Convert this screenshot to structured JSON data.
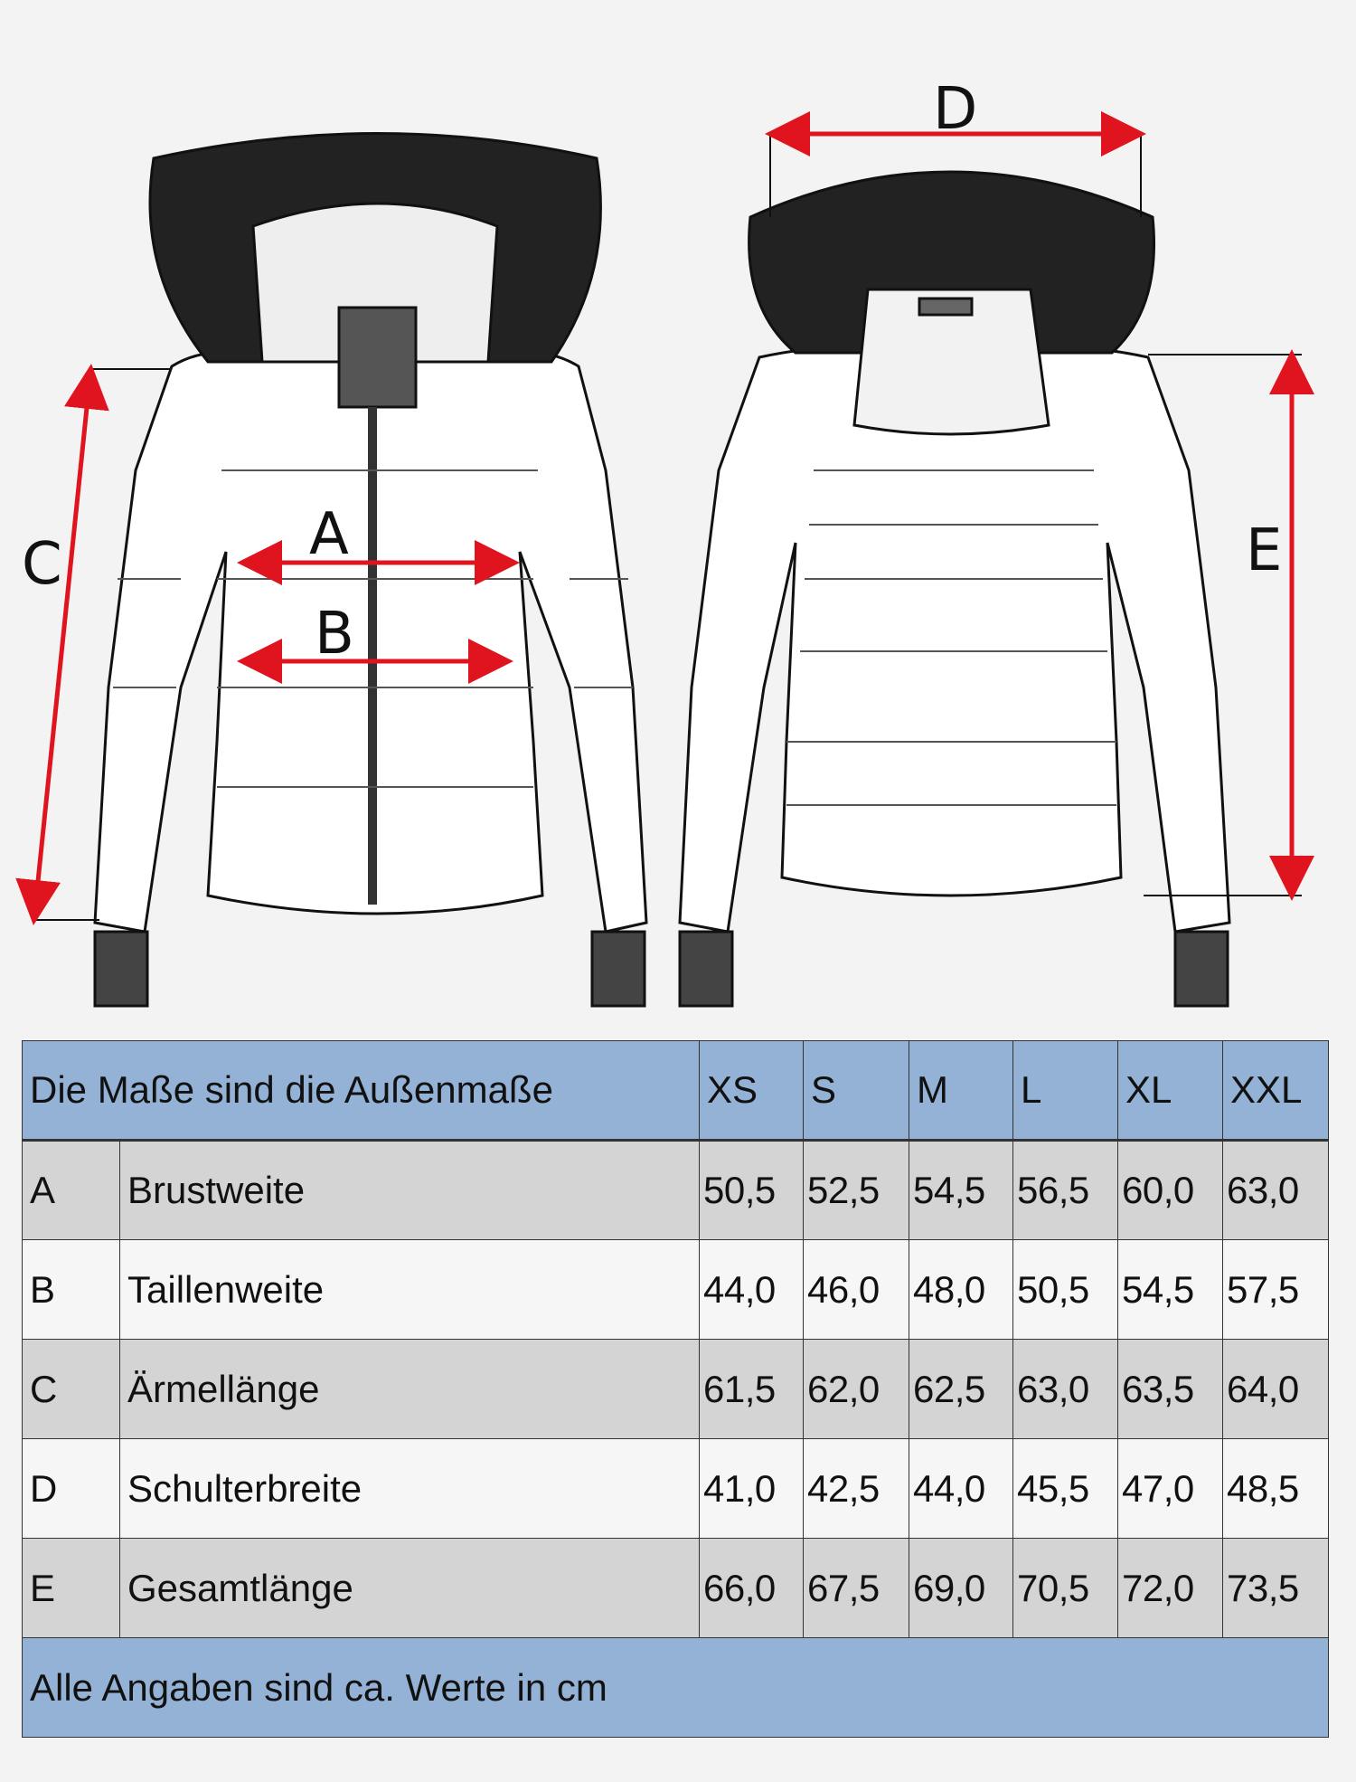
{
  "diagram": {
    "labels": {
      "A": "A",
      "B": "B",
      "C": "C",
      "D": "D",
      "E": "E"
    },
    "arrow_color": "#e0141e"
  },
  "table": {
    "header": {
      "title": "Die Maße sind die Außenmaße",
      "sizes": [
        "XS",
        "S",
        "M",
        "L",
        "XL",
        "XXL"
      ]
    },
    "rows": [
      {
        "key": "A",
        "name": "Brustweite",
        "values": [
          "50,5",
          "52,5",
          "54,5",
          "56,5",
          "60,0",
          "63,0"
        ]
      },
      {
        "key": "B",
        "name": "Taillenweite",
        "values": [
          "44,0",
          "46,0",
          "48,0",
          "50,5",
          "54,5",
          "57,5"
        ]
      },
      {
        "key": "C",
        "name": "Ärmellänge",
        "values": [
          "61,5",
          "62,0",
          "62,5",
          "63,0",
          "63,5",
          "64,0"
        ]
      },
      {
        "key": "D",
        "name": "Schulterbreite",
        "values": [
          "41,0",
          "42,5",
          "44,0",
          "45,5",
          "47,0",
          "48,5"
        ]
      },
      {
        "key": "E",
        "name": "Gesamtlänge",
        "values": [
          "66,0",
          "67,5",
          "69,0",
          "70,5",
          "72,0",
          "73,5"
        ]
      }
    ],
    "footer": "Alle Angaben sind ca. Werte in cm",
    "colors": {
      "header": "#94b2d6",
      "shaded_row": "#d4d4d4"
    }
  }
}
